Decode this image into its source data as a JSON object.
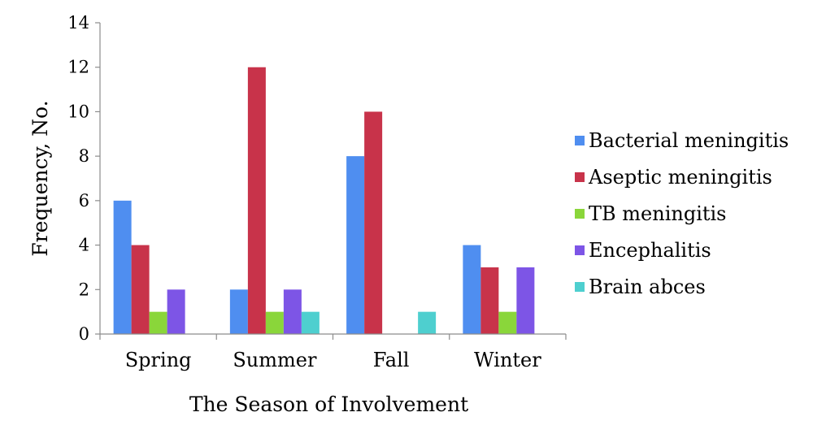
{
  "chart_data": {
    "type": "bar",
    "title": "",
    "xlabel": "The Season of Involvement",
    "ylabel": "Frequency, No.",
    "categories": [
      "Spring",
      "Summer",
      "Fall",
      "Winter"
    ],
    "ylim": [
      0,
      14
    ],
    "yticks": [
      0,
      2,
      4,
      6,
      8,
      10,
      12,
      14
    ],
    "grid": false,
    "legend_position": "right",
    "series": [
      {
        "name": "Bacterial meningitis",
        "color": "#4f8ef0",
        "values": [
          6,
          2,
          8,
          4
        ]
      },
      {
        "name": "Aseptic meningitis",
        "color": "#c8334a",
        "values": [
          4,
          12,
          10,
          3
        ]
      },
      {
        "name": "TB meningitis",
        "color": "#8ad63a",
        "values": [
          1,
          1,
          0,
          1
        ]
      },
      {
        "name": "Encephalitis",
        "color": "#7d55e6",
        "values": [
          2,
          2,
          0,
          3
        ]
      },
      {
        "name": "Brain abces",
        "color": "#4ecfcf",
        "values": [
          0,
          1,
          1,
          0
        ]
      }
    ]
  }
}
